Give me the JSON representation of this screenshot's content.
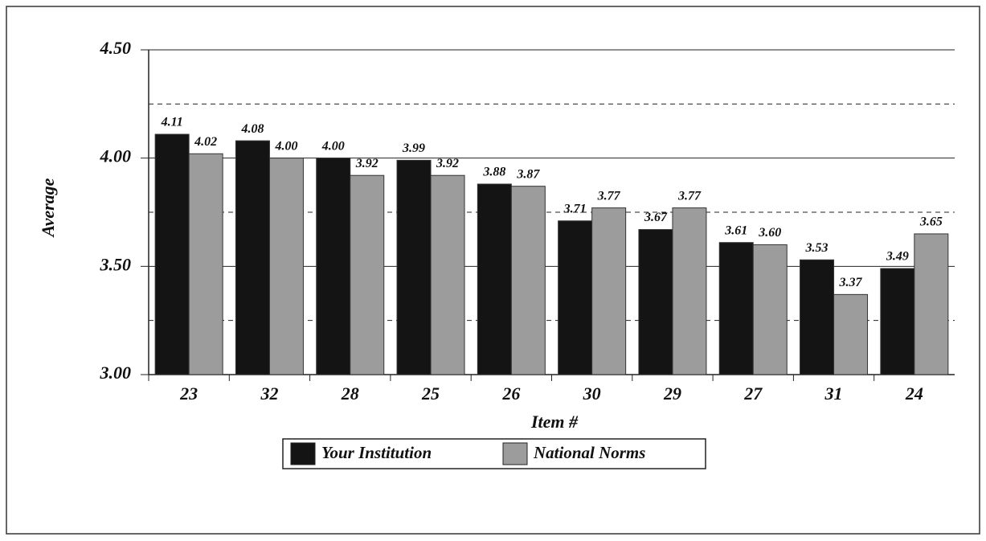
{
  "chart_data": {
    "type": "bar",
    "y_label": "Average",
    "x_label": "Item #",
    "categories": [
      "23",
      "32",
      "28",
      "25",
      "26",
      "30",
      "29",
      "27",
      "31",
      "24"
    ],
    "series": [
      {
        "name": "Your Institution",
        "color": "#141414",
        "values": [
          4.11,
          4.08,
          4.0,
          3.99,
          3.88,
          3.71,
          3.67,
          3.61,
          3.53,
          3.49
        ],
        "value_labels": [
          "4.11",
          "4.08",
          "4.00",
          "3.99",
          "3.88",
          "3.71",
          "3.67",
          "3.61",
          "3.53",
          "3.49"
        ]
      },
      {
        "name": "National Norms",
        "color": "#9c9c9c",
        "values": [
          4.02,
          4.0,
          3.92,
          3.92,
          3.87,
          3.77,
          3.77,
          3.6,
          3.37,
          3.65
        ],
        "value_labels": [
          "4.02",
          "4.00",
          "3.92",
          "3.92",
          "3.87",
          "3.77",
          "3.77",
          "3.60",
          "3.37",
          "3.65"
        ]
      }
    ],
    "ylim": [
      3,
      4.5
    ],
    "yticks": [
      {
        "value": 3,
        "label": "3.00"
      },
      {
        "value": 3.5,
        "label": "3.50"
      },
      {
        "value": 4,
        "label": "4.00"
      },
      {
        "value": 4.5,
        "label": "4.50"
      }
    ],
    "minor_yticks": [
      3.25,
      3.75,
      4.25
    ],
    "grid": true,
    "legend": "bottom"
  }
}
